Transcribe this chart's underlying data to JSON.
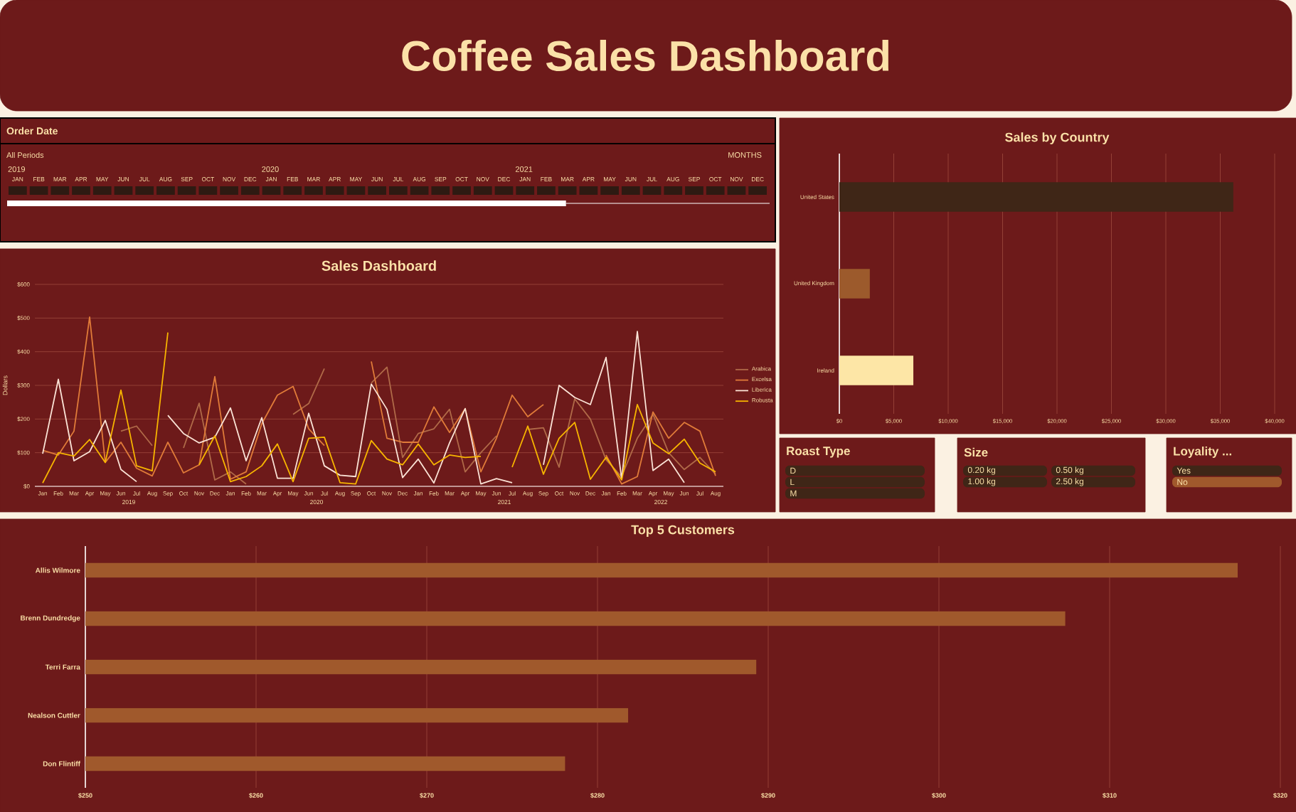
{
  "chart_data": [
    {
      "type": "other",
      "title": "Coffee Sales Dashboard"
    },
    {
      "type": "other",
      "title": "Order Date",
      "annotations": [
        "All Periods",
        "MONTHS",
        "2019",
        "2020",
        "2021"
      ],
      "categories": [
        "JAN",
        "FEB",
        "MAR",
        "APR",
        "MAY",
        "JUN",
        "JUL",
        "AUG",
        "SEP",
        "OCT",
        "NOV",
        "DEC",
        "JAN",
        "FEB",
        "MAR",
        "APR",
        "MAY",
        "JUN",
        "JUL",
        "AUG",
        "SEP",
        "OCT",
        "NOV",
        "DEC",
        "JAN",
        "FEB",
        "MAR",
        "APR",
        "MAY",
        "JUN",
        "JUL",
        "AUG",
        "SEP",
        "OCT",
        "NOV",
        "DEC"
      ],
      "color": "#2e1a12"
    },
    {
      "type": "bar",
      "orientation": "horizontal",
      "title": "Sales by Country",
      "categories": [
        "United States",
        "United Kingdom",
        "Ireland"
      ],
      "values": [
        36200,
        2800,
        6800
      ],
      "colors": [
        "#3f2617",
        "#9c5a2c",
        "#fde6a6"
      ],
      "xlim": [
        0,
        40000
      ],
      "xticks": [
        {
          "value": 0,
          "label": "$0"
        },
        {
          "value": 5000,
          "label": "$5,000"
        },
        {
          "value": 10000,
          "label": "$10,000"
        },
        {
          "value": 15000,
          "label": "$15,000"
        },
        {
          "value": 20000,
          "label": "$20,000"
        },
        {
          "value": 25000,
          "label": "$25,000"
        },
        {
          "value": 30000,
          "label": "$30,000"
        },
        {
          "value": 35000,
          "label": "$35,000"
        },
        {
          "value": 40000,
          "label": "$40,000"
        }
      ],
      "grid": "x"
    },
    {
      "type": "line",
      "title": "Sales Dashboard",
      "ylabel": "Dollars",
      "categories": [
        "Jan",
        "Feb",
        "Mar",
        "Apr",
        "May",
        "Jun",
        "Jul",
        "Aug",
        "Sep",
        "Oct",
        "Nov",
        "Dec",
        "Jan",
        "Feb",
        "Mar",
        "Apr",
        "May",
        "Jun",
        "Jul",
        "Aug",
        "Sep",
        "Oct",
        "Nov",
        "Dec",
        "Jan",
        "Feb",
        "Mar",
        "Apr",
        "May",
        "Jun",
        "Jul",
        "Aug",
        "Sep",
        "Oct",
        "Nov",
        "Dec",
        "Jan",
        "Feb",
        "Mar",
        "Apr",
        "May",
        "Jun",
        "Jul",
        "Aug"
      ],
      "series": [
        {
          "name": "Arabica",
          "color": "#b06a48",
          "values": [
            null,
            null,
            null,
            null,
            null,
            164,
            179,
            121,
            null,
            114,
            247,
            19,
            43,
            7,
            null,
            null,
            214,
            246,
            350,
            null,
            null,
            307,
            354,
            86,
            157,
            171,
            229,
            43,
            100,
            150,
            null,
            169,
            174,
            57,
            260,
            200,
            79,
            29,
            143,
            214,
            100,
            50,
            86,
            36
          ]
        },
        {
          "name": "Excelsa",
          "color": "#e07b39",
          "values": [
            107,
            93,
            164,
            503,
            71,
            131,
            54,
            31,
            131,
            40,
            64,
            326,
            21,
            43,
            186,
            271,
            297,
            171,
            121,
            null,
            null,
            371,
            143,
            131,
            131,
            236,
            160,
            231,
            43,
            143,
            271,
            207,
            243,
            null,
            null,
            null,
            93,
            7,
            29,
            221,
            143,
            190,
            164,
            31
          ]
        },
        {
          "name": "Liberica",
          "color": "#fbe3d6",
          "values": [
            97,
            318,
            76,
            103,
            196,
            50,
            14,
            null,
            211,
            157,
            129,
            146,
            233,
            76,
            204,
            24,
            24,
            217,
            61,
            33,
            29,
            304,
            229,
            26,
            81,
            10,
            129,
            231,
            7,
            23,
            11,
            null,
            64,
            300,
            264,
            243,
            383,
            21,
            460,
            47,
            81,
            11,
            null,
            null
          ]
        },
        {
          "name": "Robusta",
          "color": "#f7b500",
          "values": [
            10,
            100,
            90,
            139,
            71,
            286,
            61,
            46,
            457,
            null,
            64,
            150,
            14,
            29,
            61,
            126,
            14,
            143,
            146,
            11,
            7,
            136,
            81,
            64,
            126,
            64,
            93,
            86,
            89,
            null,
            57,
            179,
            36,
            143,
            190,
            21,
            86,
            19,
            243,
            129,
            97,
            140,
            69,
            43
          ]
        }
      ],
      "ylim": [
        0,
        600
      ],
      "yticks": [
        {
          "value": 0,
          "label": "$0"
        },
        {
          "value": 100,
          "label": "$100"
        },
        {
          "value": 200,
          "label": "$200"
        },
        {
          "value": 300,
          "label": "$300"
        },
        {
          "value": 400,
          "label": "$400"
        },
        {
          "value": 500,
          "label": "$500"
        },
        {
          "value": 600,
          "label": "$600"
        }
      ],
      "grid": "y",
      "legend": "right",
      "annotations": [
        "2019",
        "2020",
        "2021",
        "2022"
      ]
    },
    {
      "type": "other",
      "title": "Roast Type",
      "categories": [
        "D",
        "L",
        "M"
      ],
      "color": "#3f2617"
    },
    {
      "type": "other",
      "title": "Size",
      "categories": [
        "0.20 kg",
        "0.50 kg",
        "1.00 kg",
        "2.50 kg"
      ],
      "color": "#3f2617"
    },
    {
      "type": "other",
      "title": "Loyality ...",
      "categories": [
        "Yes",
        "No"
      ],
      "colors": [
        "#3f2617",
        "#a0592c"
      ]
    },
    {
      "type": "bar",
      "orientation": "horizontal",
      "title": "Top 5 Customers",
      "categories": [
        "Allis Wilmore",
        "Brenn Dundredge",
        "Terri Farra",
        "Nealson Cuttler",
        "Don Flintiff"
      ],
      "values": [
        317.5,
        307.4,
        289.3,
        281.8,
        278.1
      ],
      "color": "#a0592c",
      "xlim": [
        250,
        320
      ],
      "xticks": [
        {
          "value": 250,
          "label": "$250"
        },
        {
          "value": 260,
          "label": "$260"
        },
        {
          "value": 270,
          "label": "$270"
        },
        {
          "value": 280,
          "label": "$280"
        },
        {
          "value": 290,
          "label": "$290"
        },
        {
          "value": 300,
          "label": "$300"
        },
        {
          "value": 310,
          "label": "$310"
        },
        {
          "value": 320,
          "label": "$320"
        }
      ],
      "grid": "x"
    }
  ]
}
